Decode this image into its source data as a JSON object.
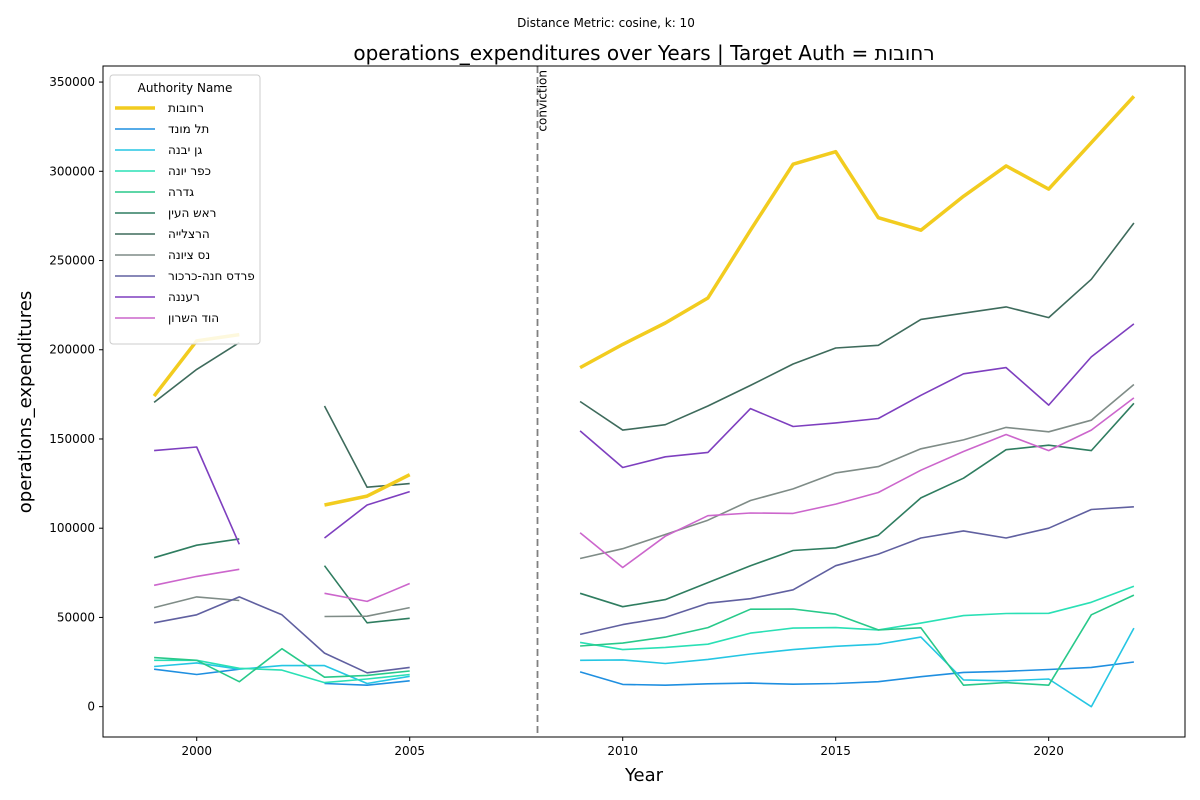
{
  "figure": {
    "suptitle": "Distance Metric: cosine, k: 10"
  },
  "chart_data": {
    "type": "line",
    "title": "operations_expenditures over Years | Target Auth = רחובות",
    "xlabel": "Year",
    "ylabel": "operations_expenditures",
    "xlim": [
      1997.8,
      2023.2
    ],
    "ylim": [
      -17000,
      359000
    ],
    "x_ticks": [
      2000,
      2005,
      2010,
      2015,
      2020
    ],
    "y_ticks": [
      0,
      50000,
      100000,
      150000,
      200000,
      250000,
      300000,
      350000
    ],
    "grid": false,
    "legend": {
      "title": "Authority Name",
      "placement": "upper-left"
    },
    "annotations": [
      {
        "type": "vline",
        "x": 2008,
        "label": "conviction",
        "color": "#808080",
        "style": "dashed"
      }
    ],
    "x": [
      1999,
      2000,
      2001,
      2002,
      2003,
      2004,
      2005,
      2006,
      2007,
      2008,
      2009,
      2010,
      2011,
      2012,
      2013,
      2014,
      2015,
      2016,
      2017,
      2018,
      2019,
      2020,
      2021,
      2022
    ],
    "series": [
      {
        "name": "רחובות",
        "color": "#f2cc1f",
        "target": true,
        "values": [
          174000,
          205000,
          208500,
          null,
          113000,
          118000,
          130000,
          null,
          null,
          null,
          190000,
          203000,
          215000,
          229000,
          267000,
          304000,
          311000,
          274000,
          267000,
          286000,
          303000,
          290000,
          316000,
          342000
        ]
      },
      {
        "name": "תל מונד",
        "color": "#1f8fe0",
        "values": [
          21000,
          18000,
          21000,
          null,
          13000,
          12000,
          14500,
          null,
          null,
          null,
          19500,
          12500,
          12000,
          12800,
          13200,
          12600,
          13000,
          14000,
          16800,
          19200,
          19800,
          20800,
          22000,
          25000
        ]
      },
      {
        "name": "גן יבנה",
        "color": "#25c6e3",
        "values": [
          22500,
          24500,
          21000,
          23000,
          23000,
          13000,
          17000,
          null,
          null,
          null,
          26000,
          26200,
          24200,
          26500,
          29500,
          32000,
          33800,
          35000,
          39000,
          15000,
          14500,
          15500,
          0,
          44000
        ]
      },
      {
        "name": "כפר יונה",
        "color": "#2ae0b5",
        "values": [
          26000,
          26000,
          21500,
          20500,
          13500,
          15500,
          18000,
          null,
          null,
          null,
          36000,
          32000,
          33200,
          35000,
          41200,
          44000,
          44300,
          43000,
          46800,
          51000,
          52200,
          52300,
          58500,
          67500
        ]
      },
      {
        "name": "גדרה",
        "color": "#28c98a",
        "values": [
          27500,
          26000,
          14000,
          32500,
          16500,
          17500,
          20000,
          null,
          null,
          null,
          34000,
          35600,
          39000,
          44300,
          54600,
          54700,
          51800,
          43000,
          44200,
          12000,
          13500,
          12000,
          51500,
          62500
        ]
      },
      {
        "name": "ראש העין",
        "color": "#2f7d60",
        "values": [
          83500,
          90500,
          94000,
          null,
          79000,
          47000,
          49500,
          null,
          null,
          null,
          63500,
          56000,
          60000,
          69500,
          79000,
          87500,
          89000,
          96000,
          117000,
          128000,
          144000,
          146500,
          143500,
          170000
        ]
      },
      {
        "name": "הרצלייה",
        "color": "#3e6b5c",
        "values": [
          170500,
          189000,
          204000,
          null,
          168500,
          123000,
          125000,
          null,
          null,
          null,
          171000,
          155000,
          158000,
          168500,
          180000,
          192000,
          201000,
          202500,
          217000,
          220500,
          224000,
          218000,
          239500,
          271000
        ]
      },
      {
        "name": "נס ציונה",
        "color": "#7f8c87",
        "values": [
          55500,
          61500,
          59500,
          null,
          50500,
          50700,
          55500,
          null,
          null,
          null,
          83000,
          88500,
          96500,
          104500,
          115500,
          122000,
          131000,
          134500,
          144500,
          149500,
          156500,
          154000,
          160500,
          180500
        ]
      },
      {
        "name": "פרדס חנה-כרכור",
        "color": "#6060a0",
        "values": [
          47000,
          51500,
          61500,
          51500,
          30000,
          19000,
          22000,
          null,
          null,
          null,
          40500,
          46000,
          50000,
          58000,
          60500,
          65500,
          79000,
          85500,
          94500,
          98500,
          94500,
          100000,
          110500,
          112000
        ]
      },
      {
        "name": "רעננה",
        "color": "#7e3fbf",
        "values": [
          143500,
          145500,
          91000,
          null,
          94500,
          113000,
          120500,
          null,
          null,
          null,
          154500,
          134000,
          140000,
          142500,
          167000,
          157000,
          159000,
          161500,
          174500,
          186500,
          190000,
          169000,
          196000,
          214500
        ]
      },
      {
        "name": "הוד השרון",
        "color": "#cc66cc",
        "values": [
          68000,
          73000,
          77000,
          null,
          63500,
          59000,
          69000,
          null,
          null,
          null,
          97500,
          78000,
          95500,
          107000,
          108500,
          108300,
          113500,
          120000,
          132500,
          143000,
          152500,
          143500,
          155000,
          173000
        ]
      }
    ]
  }
}
